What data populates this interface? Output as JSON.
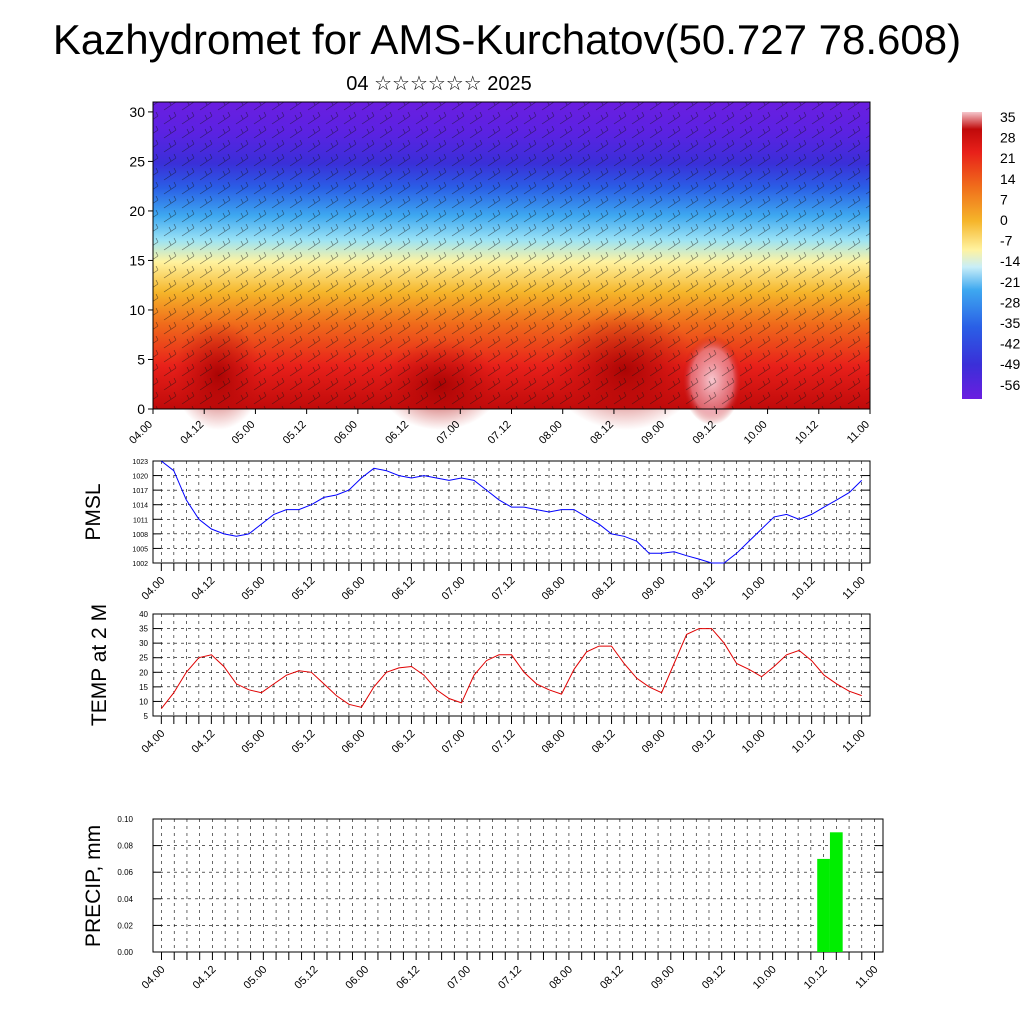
{
  "title": "Kazhydromet for AMS-Kurchatov(50.727 78.608)",
  "subtitle": "04 ☆☆☆☆☆☆ 2025",
  "time_labels": [
    "04.00",
    "04.12",
    "05.00",
    "05.12",
    "06.00",
    "06.12",
    "07.00",
    "07.12",
    "08.00",
    "08.12",
    "09.00",
    "09.12",
    "10.00",
    "10.12",
    "11.00"
  ],
  "chart_data": [
    {
      "type": "heatmap",
      "name": "cross-section",
      "xlabel": "",
      "ylabel": "",
      "ylim": [
        0,
        31
      ],
      "yticks": [
        "0",
        "5",
        "10",
        "15",
        "20",
        "25",
        "30"
      ],
      "colorbar_labels": [
        "35",
        "28",
        "21",
        "14",
        "7",
        "0",
        "-7",
        "-14",
        "-21",
        "-28",
        "-35",
        "-42",
        "-49",
        "-56"
      ],
      "colorbar_range": [
        -63,
        42
      ],
      "colors": {
        "cold": "#6a1ee0",
        "cool": "#2f5fe8",
        "mild": "#66d3f5",
        "neutral": "#fff68a",
        "warm": "#f5a623",
        "hot": "#e8201a",
        "hottest": "#f2b8c0"
      },
      "note_overlay": "wind barbs"
    },
    {
      "type": "line",
      "name": "pmsl",
      "ylabel": "PMSL",
      "yticks": [
        "1002",
        "1005",
        "1008",
        "1011",
        "1014",
        "1017",
        "1020",
        "1023"
      ],
      "ylim": [
        1002,
        1023
      ],
      "color": "#0000ff",
      "x": [
        "04.00",
        "04.03",
        "04.06",
        "04.09",
        "04.12",
        "04.15",
        "04.18",
        "04.21",
        "05.00",
        "05.03",
        "05.06",
        "05.09",
        "05.12",
        "05.15",
        "05.18",
        "05.21",
        "06.00",
        "06.03",
        "06.06",
        "06.09",
        "06.12",
        "06.15",
        "06.18",
        "06.21",
        "07.00",
        "07.03",
        "07.06",
        "07.09",
        "07.12",
        "07.15",
        "07.18",
        "07.21",
        "08.00",
        "08.03",
        "08.06",
        "08.09",
        "08.12",
        "08.15",
        "08.18",
        "08.21",
        "09.00",
        "09.03",
        "09.06",
        "09.09",
        "09.12",
        "09.15",
        "09.18",
        "09.21",
        "10.00",
        "10.03",
        "10.06",
        "10.09",
        "10.12",
        "10.15",
        "10.18",
        "10.21",
        "11.00"
      ],
      "values": [
        1023,
        1021,
        1015,
        1011,
        1009,
        1008,
        1007.5,
        1008,
        1010,
        1012,
        1013,
        1013,
        1014,
        1015.5,
        1016,
        1017,
        1019.5,
        1021.5,
        1021,
        1020,
        1019.5,
        1020,
        1019.5,
        1019,
        1019.5,
        1019,
        1017,
        1015,
        1013.5,
        1013.5,
        1013,
        1012.5,
        1013,
        1013,
        1011.5,
        1010,
        1008,
        1007.5,
        1006.5,
        1004,
        1004,
        1004.3,
        1003.5,
        1002.8,
        1002,
        1002,
        1004,
        1006.5,
        1009,
        1011.5,
        1012,
        1011,
        1012,
        1013.5,
        1015,
        1016.5,
        1019
      ]
    },
    {
      "type": "line",
      "name": "temperature",
      "ylabel": "TEMP at 2 M",
      "yticks": [
        "5",
        "10",
        "15",
        "20",
        "25",
        "30",
        "35",
        "40"
      ],
      "ylim": [
        5,
        40
      ],
      "color": "#e00000",
      "x": [
        "04.00",
        "04.03",
        "04.06",
        "04.09",
        "04.12",
        "04.15",
        "04.18",
        "04.21",
        "05.00",
        "05.03",
        "05.06",
        "05.09",
        "05.12",
        "05.15",
        "05.18",
        "05.21",
        "06.00",
        "06.03",
        "06.06",
        "06.09",
        "06.12",
        "06.15",
        "06.18",
        "06.21",
        "07.00",
        "07.03",
        "07.06",
        "07.09",
        "07.12",
        "07.15",
        "07.18",
        "07.21",
        "08.00",
        "08.03",
        "08.06",
        "08.09",
        "08.12",
        "08.15",
        "08.18",
        "08.21",
        "09.00",
        "09.03",
        "09.06",
        "09.09",
        "09.12",
        "09.15",
        "09.18",
        "09.21",
        "10.00",
        "10.03",
        "10.06",
        "10.09",
        "10.12",
        "10.15",
        "10.18",
        "10.21",
        "11.00"
      ],
      "values": [
        7.5,
        13,
        20,
        25,
        26,
        22,
        16,
        14,
        13,
        16,
        19,
        20.5,
        20,
        16,
        12,
        9,
        8,
        15,
        20,
        21.5,
        22,
        19,
        14,
        11,
        9.5,
        19,
        24,
        26,
        26,
        20,
        16,
        14,
        12.5,
        21,
        27,
        29,
        29,
        23,
        18,
        15,
        13,
        23,
        33,
        35,
        35,
        30,
        23,
        21,
        18.5,
        22,
        26,
        27.5,
        24,
        19,
        16,
        13.5,
        12
      ]
    },
    {
      "type": "bar",
      "name": "precipitation",
      "ylabel": "PRECIP, mm",
      "yticks": [
        "0.00",
        "0.02",
        "0.04",
        "0.06",
        "0.08",
        "0.10"
      ],
      "ylim": [
        0,
        0.1
      ],
      "color": "#00ee00",
      "categories": [
        "10.12",
        "10.15"
      ],
      "values": [
        0.07,
        0.09
      ]
    }
  ]
}
